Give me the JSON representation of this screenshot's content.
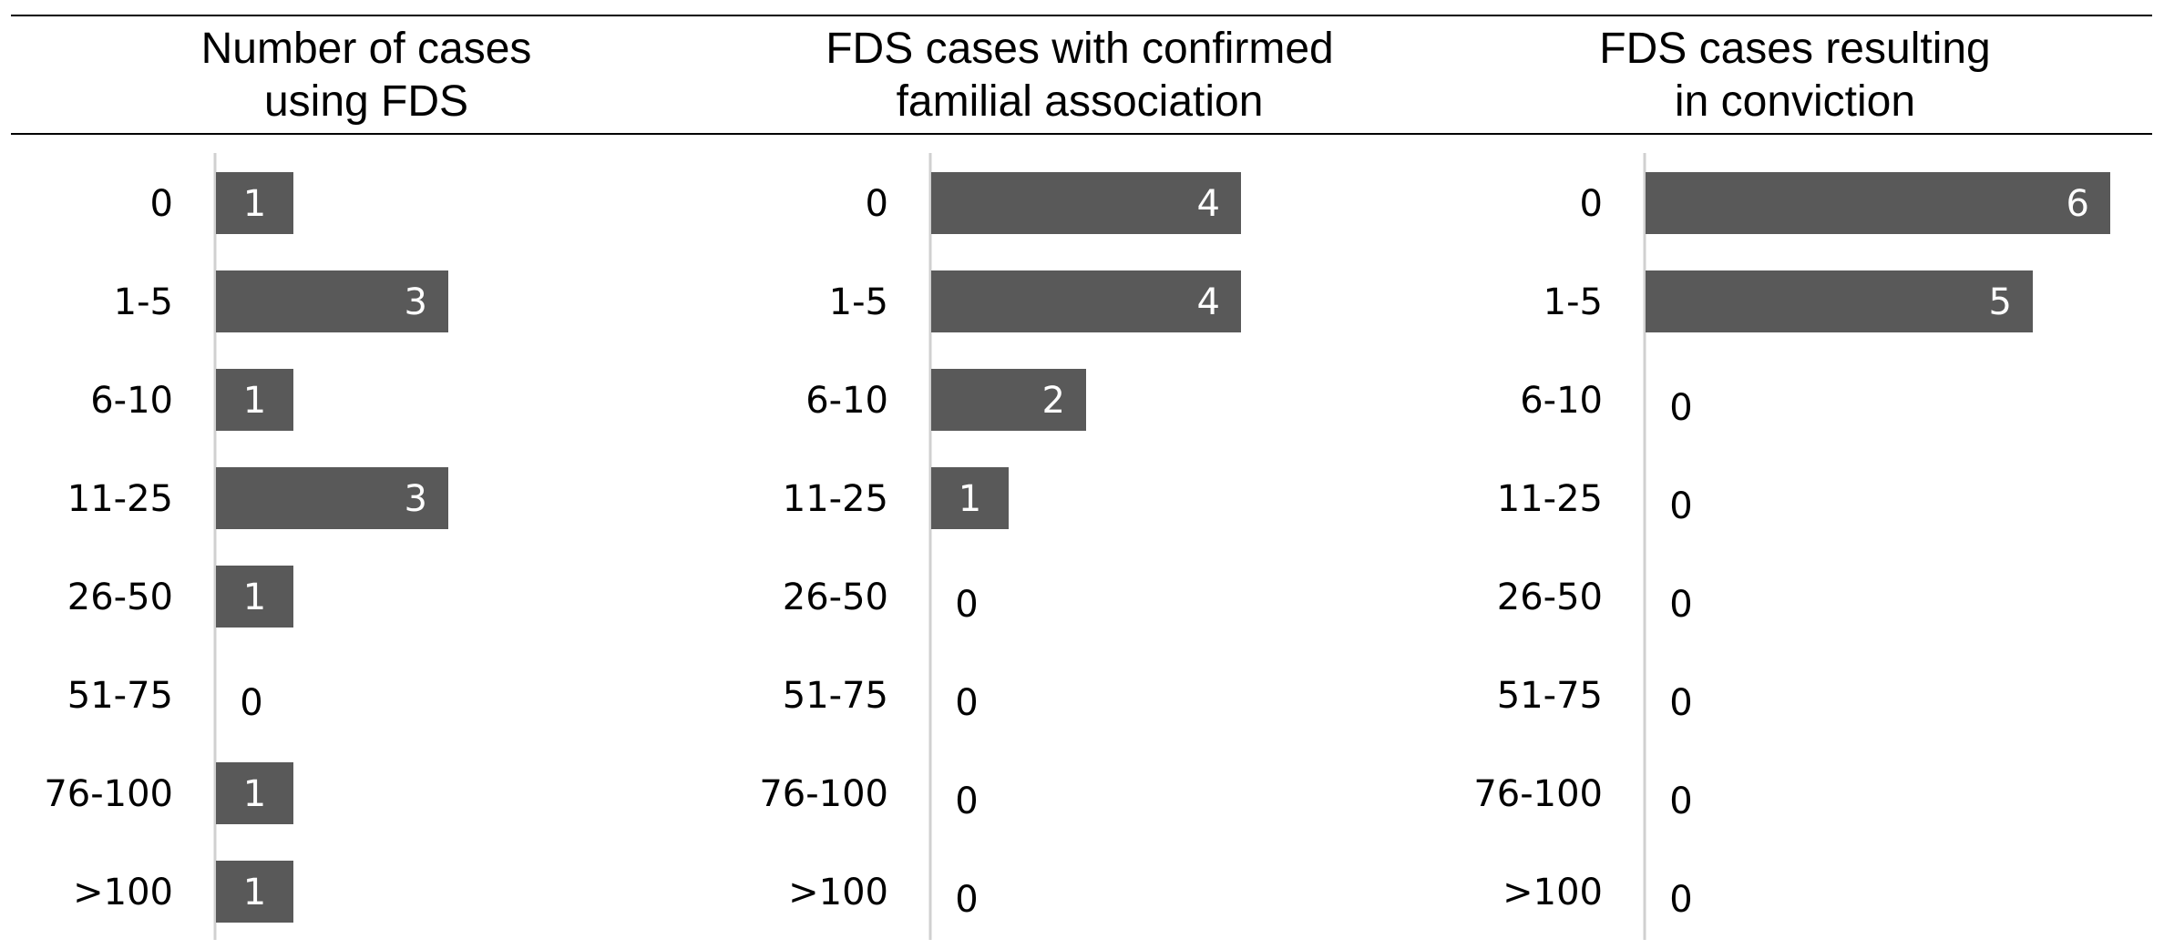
{
  "chart_data": {
    "type": "bar",
    "orientation": "horizontal",
    "categories": [
      "0",
      "1-5",
      "6-10",
      "11-25",
      "26-50",
      "51-75",
      "76-100",
      ">100"
    ],
    "series": [
      {
        "name": "Number of cases using FDS",
        "values": [
          1,
          3,
          1,
          3,
          1,
          0,
          1,
          1
        ]
      },
      {
        "name": "FDS cases with confirmed familial association",
        "values": [
          4,
          4,
          2,
          1,
          0,
          0,
          0,
          0
        ]
      },
      {
        "name": "FDS cases resulting in conviction",
        "values": [
          6,
          5,
          0,
          0,
          0,
          0,
          0,
          0
        ]
      }
    ],
    "headers": [
      [
        "Number of cases",
        "using FDS"
      ],
      [
        "FDS cases with confirmed",
        "familial association"
      ],
      [
        "FDS cases resulting",
        "in conviction"
      ]
    ],
    "xlim": [
      0,
      6
    ],
    "grid": false,
    "legend": "none",
    "bar_color": "#595959"
  }
}
